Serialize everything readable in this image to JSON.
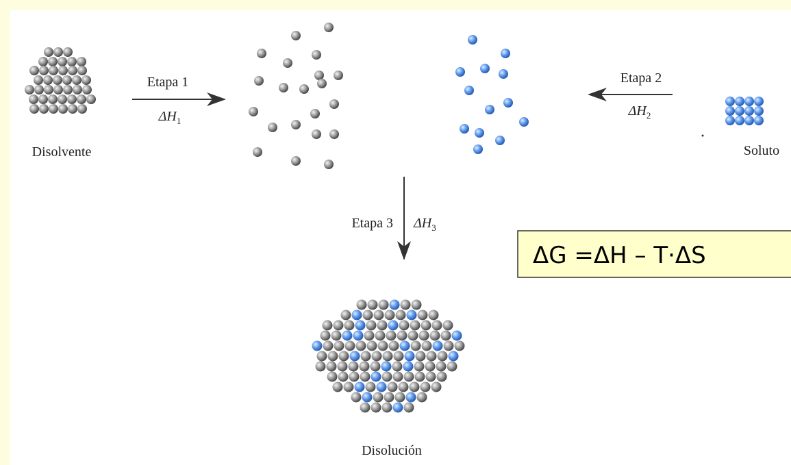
{
  "solvent": {
    "label": "Disolvente"
  },
  "step1": {
    "label": "Etapa 1",
    "enthalpy": {
      "symbol": "ΔH",
      "subscript": "1"
    }
  },
  "step2": {
    "label": "Etapa 2",
    "enthalpy": {
      "symbol": "ΔH",
      "subscript": "2"
    }
  },
  "solute": {
    "label": "Soluto"
  },
  "step3": {
    "label": "Etapa 3",
    "enthalpy": {
      "symbol": "ΔH",
      "subscript": "3"
    }
  },
  "solution": {
    "label": "Disolución"
  },
  "formula": "ΔG =ΔH – T·ΔS"
}
